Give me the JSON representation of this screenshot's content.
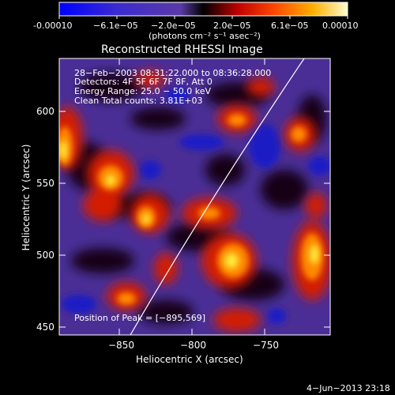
{
  "colorbar": {
    "ticks": [
      "-0.00010",
      "−6.1e−05",
      "−2.0e−05",
      "2.0e−05",
      "6.1e−05",
      "0.00010"
    ],
    "unit_label": "(photons cm⁻² s⁻¹ asec⁻²)"
  },
  "plot": {
    "title": "Reconstructed RHESSI Image",
    "info": [
      "28−Feb−2003 08:31:22.000 to 08:36:28.000",
      "Detectors: 4F 5F 6F 7F 8F, Att 0",
      "Energy Range: 25.0 − 50.0 keV",
      "Clean     Total counts: 3.81E+03"
    ],
    "peak": "Position of Peak = [−895,569]",
    "xlabel": "Heliocentric X (arcsec)",
    "ylabel": "Heliocentric Y (arcsec)",
    "xticks": [
      "−850",
      "−800",
      "−750"
    ],
    "yticks": [
      "600",
      "550",
      "500",
      "450"
    ],
    "colors": {
      "deep_blue": "#1e22cc",
      "purple": "#5a3aa6",
      "dark": "#1a0a14",
      "red": "#d41c00",
      "orange": "#ff8a00",
      "yellow": "#ffe93a"
    }
  },
  "footer": {
    "timestamp": "4−Jun−2013 23:18"
  }
}
